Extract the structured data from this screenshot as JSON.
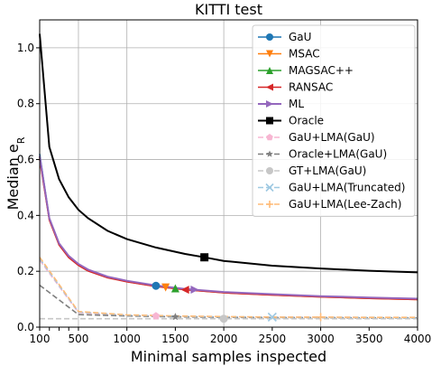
{
  "chart_data": {
    "type": "line",
    "title": "KITTI test",
    "xlabel": "Minimal samples inspected",
    "ylabel_main": "Median e",
    "ylabel_sub": "R",
    "xlim": [
      100,
      4000
    ],
    "ylim": [
      0,
      1.1
    ],
    "xticks": [
      {
        "v": 100,
        "label": "100"
      },
      {
        "v": 200,
        "label": ""
      },
      {
        "v": 300,
        "label": ""
      },
      {
        "v": 400,
        "label": ""
      },
      {
        "v": 500,
        "label": "500"
      },
      {
        "v": 1000,
        "label": "1000"
      },
      {
        "v": 1500,
        "label": "1500"
      },
      {
        "v": 2000,
        "label": "2000"
      },
      {
        "v": 2500,
        "label": "2500"
      },
      {
        "v": 3000,
        "label": "3000"
      },
      {
        "v": 3500,
        "label": "3500"
      },
      {
        "v": 4000,
        "label": "4000"
      }
    ],
    "xgrid": [
      100,
      500,
      1000,
      2000,
      3000,
      4000
    ],
    "yticks": [
      {
        "v": 0,
        "label": "0.0"
      },
      {
        "v": 0.2,
        "label": "0.2"
      },
      {
        "v": 0.4,
        "label": "0.4"
      },
      {
        "v": 0.6,
        "label": "0.6"
      },
      {
        "v": 0.8,
        "label": "0.8"
      },
      {
        "v": 1.0,
        "label": "1.0"
      }
    ],
    "grid": true,
    "legend_position": "upper-right",
    "series": [
      {
        "name": "GaU",
        "color": "#1f77b4",
        "dash": "",
        "width": 1.6,
        "marker": "circle",
        "mx": 1300,
        "x": [
          100,
          200,
          300,
          400,
          500,
          600,
          800,
          1000,
          1300,
          1600,
          2000,
          2500,
          3000,
          3500,
          4000
        ],
        "y": [
          0.62,
          0.39,
          0.3,
          0.255,
          0.225,
          0.205,
          0.18,
          0.165,
          0.148,
          0.136,
          0.125,
          0.117,
          0.11,
          0.105,
          0.101
        ]
      },
      {
        "name": "MSAC",
        "color": "#ff7f0e",
        "dash": "",
        "width": 1.6,
        "marker": "triangle-down",
        "mx": 1400,
        "x": [
          100,
          200,
          300,
          400,
          500,
          600,
          800,
          1000,
          1300,
          1600,
          2000,
          2500,
          3000,
          3500,
          4000
        ],
        "y": [
          0.605,
          0.385,
          0.295,
          0.25,
          0.222,
          0.202,
          0.178,
          0.163,
          0.146,
          0.134,
          0.123,
          0.115,
          0.108,
          0.103,
          0.099
        ]
      },
      {
        "name": "MAGSAC++",
        "color": "#2ca02c",
        "dash": "",
        "width": 1.6,
        "marker": "triangle-up",
        "mx": 1500,
        "x": [
          100,
          200,
          300,
          400,
          500,
          600,
          800,
          1000,
          1300,
          1600,
          2000,
          2500,
          3000,
          3500,
          4000
        ],
        "y": [
          0.61,
          0.387,
          0.297,
          0.252,
          0.223,
          0.203,
          0.179,
          0.164,
          0.147,
          0.135,
          0.124,
          0.116,
          0.109,
          0.104,
          0.1
        ]
      },
      {
        "name": "RANSAC",
        "color": "#d62728",
        "dash": "",
        "width": 1.6,
        "marker": "triangle-left",
        "mx": 1600,
        "x": [
          100,
          200,
          300,
          400,
          500,
          600,
          800,
          1000,
          1300,
          1600,
          2000,
          2500,
          3000,
          3500,
          4000
        ],
        "y": [
          0.6,
          0.383,
          0.294,
          0.249,
          0.221,
          0.201,
          0.177,
          0.162,
          0.146,
          0.134,
          0.123,
          0.115,
          0.108,
          0.103,
          0.099
        ]
      },
      {
        "name": "ML",
        "color": "#9467bd",
        "dash": "",
        "width": 2.0,
        "marker": "triangle-right",
        "mx": 1700,
        "x": [
          100,
          200,
          300,
          400,
          500,
          600,
          800,
          1000,
          1300,
          1600,
          2000,
          2500,
          3000,
          3500,
          4000
        ],
        "y": [
          0.612,
          0.39,
          0.3,
          0.255,
          0.226,
          0.206,
          0.181,
          0.166,
          0.149,
          0.137,
          0.126,
          0.118,
          0.111,
          0.106,
          0.102
        ]
      },
      {
        "name": "Oracle",
        "color": "#000000",
        "dash": "",
        "width": 2.0,
        "marker": "square",
        "mx": 1800,
        "x": [
          100,
          200,
          300,
          400,
          500,
          600,
          800,
          1000,
          1300,
          1600,
          1800,
          2000,
          2500,
          3000,
          3500,
          4000
        ],
        "y": [
          1.05,
          0.645,
          0.53,
          0.465,
          0.42,
          0.39,
          0.345,
          0.315,
          0.285,
          0.262,
          0.25,
          0.237,
          0.22,
          0.21,
          0.202,
          0.196
        ]
      },
      {
        "name": "GaU+LMA(GaU)",
        "color": "#f7b6d2",
        "dash": "6,3",
        "width": 1.6,
        "marker": "pentagon",
        "mx": 1300,
        "x": [
          100,
          500,
          1000,
          1500,
          2000,
          2500,
          3000,
          3500,
          4000
        ],
        "y": [
          0.24,
          0.052,
          0.042,
          0.038,
          0.036,
          0.035,
          0.035,
          0.034,
          0.034
        ]
      },
      {
        "name": "Oracle+LMA(GaU)",
        "color": "#7f7f7f",
        "dash": "6,3",
        "width": 1.6,
        "marker": "star",
        "mx": 1500,
        "x": [
          100,
          500,
          1000,
          1500,
          2000,
          2500,
          3000,
          3500,
          4000
        ],
        "y": [
          0.15,
          0.045,
          0.04,
          0.037,
          0.035,
          0.034,
          0.034,
          0.033,
          0.033
        ]
      },
      {
        "name": "GT+LMA(GaU)",
        "color": "#c7c7c7",
        "dash": "6,3",
        "width": 1.6,
        "marker": "circle",
        "mx": 2000,
        "x": [
          100,
          4000
        ],
        "y": [
          0.03,
          0.03
        ]
      },
      {
        "name": "GaU+LMA(Truncated)",
        "color": "#9ec9e2",
        "dash": "6,3",
        "width": 1.6,
        "marker": "x",
        "mx": 2500,
        "x": [
          100,
          500,
          1000,
          1500,
          2000,
          2500,
          3000,
          3500,
          4000
        ],
        "y": [
          0.245,
          0.054,
          0.043,
          0.039,
          0.037,
          0.036,
          0.035,
          0.035,
          0.034
        ]
      },
      {
        "name": "GaU+LMA(Lee-Zach)",
        "color": "#ffbb78",
        "dash": "6,3",
        "width": 1.6,
        "marker": "plus",
        "mx": 3000,
        "x": [
          100,
          500,
          1000,
          1500,
          2000,
          2500,
          3000,
          3500,
          4000
        ],
        "y": [
          0.25,
          0.056,
          0.044,
          0.04,
          0.038,
          0.036,
          0.036,
          0.035,
          0.035
        ]
      }
    ]
  }
}
